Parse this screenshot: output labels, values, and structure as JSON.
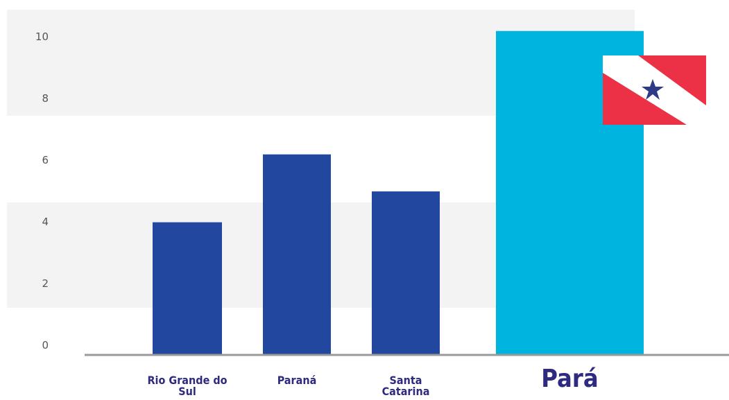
{
  "chart_data": {
    "type": "bar",
    "categories": [
      "Rio Grande do Sul",
      "Paraná",
      "Santa Catarina",
      "Pará"
    ],
    "values": [
      4.0,
      6.2,
      5.0,
      10.2
    ],
    "colors": [
      "#21489e",
      "#21489e",
      "#21489e",
      "#00b4e0"
    ],
    "ylim": [
      -0.3,
      10.8
    ],
    "yticks": [
      0,
      2,
      4,
      6,
      8,
      10
    ]
  }
}
